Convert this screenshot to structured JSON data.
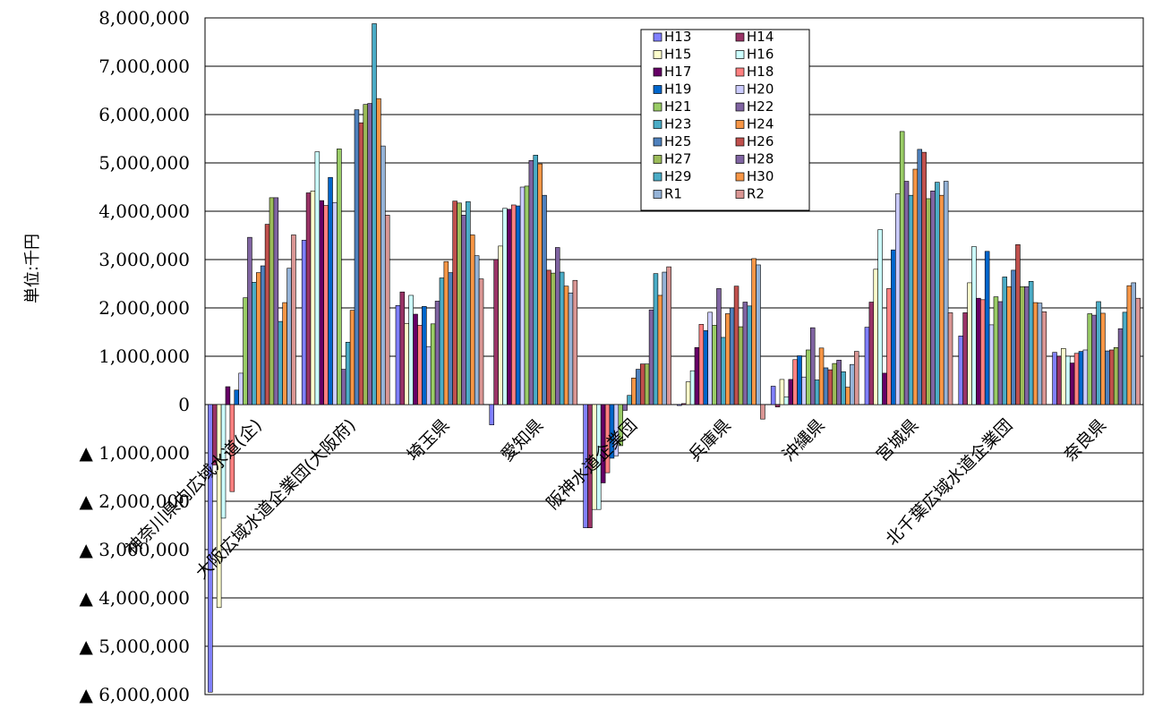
{
  "chart_data": {
    "type": "bar",
    "ylabel": "単位:千円",
    "ylim": [
      -6000000,
      8000000
    ],
    "grid": true,
    "legend_position": "top-right",
    "y_ticks": [
      {
        "value": 8000000,
        "label": "8,000,000"
      },
      {
        "value": 7000000,
        "label": "7,000,000"
      },
      {
        "value": 6000000,
        "label": "6,000,000"
      },
      {
        "value": 5000000,
        "label": "5,000,000"
      },
      {
        "value": 4000000,
        "label": "4,000,000"
      },
      {
        "value": 3000000,
        "label": "3,000,000"
      },
      {
        "value": 2000000,
        "label": "2,000,000"
      },
      {
        "value": 1000000,
        "label": "1,000,000"
      },
      {
        "value": 0,
        "label": "0"
      },
      {
        "value": -1000000,
        "label": "▲ 1,000,000"
      },
      {
        "value": -2000000,
        "label": "▲ 2,000,000"
      },
      {
        "value": -3000000,
        "label": "▲ 3,000,000"
      },
      {
        "value": -4000000,
        "label": "▲ 4,000,000"
      },
      {
        "value": -5000000,
        "label": "▲ 5,000,000"
      },
      {
        "value": -6000000,
        "label": "▲ 6,000,000"
      }
    ],
    "categories": [
      "神奈川県内広域水道(企)",
      "大阪広域水道企業団(大阪府)",
      "埼玉県",
      "愛知県",
      "阪神水道企業団",
      "兵庫県",
      "沖縄県",
      "宮城県",
      "北千葉広域水道企業団",
      "奈良県"
    ],
    "series": [
      {
        "name": "H13",
        "color": "#8080ff",
        "values": [
          -5950000,
          3400000,
          2050000,
          -420000,
          -2550000,
          -20000,
          380000,
          1600000,
          1420000,
          1080000
        ]
      },
      {
        "name": "H14",
        "color": "#993366",
        "values": [
          -1250000,
          4380000,
          2330000,
          3000000,
          -2550000,
          20000,
          -50000,
          2120000,
          1900000,
          1000000
        ]
      },
      {
        "name": "H15",
        "color": "#ffffcc",
        "values": [
          -4200000,
          4420000,
          1680000,
          3280000,
          -2170000,
          470000,
          520000,
          2800000,
          2520000,
          1160000
        ]
      },
      {
        "name": "H16",
        "color": "#ccffff",
        "values": [
          -2350000,
          5230000,
          2260000,
          4060000,
          -2170000,
          700000,
          160000,
          3620000,
          3270000,
          1000000
        ]
      },
      {
        "name": "H17",
        "color": "#660066",
        "values": [
          370000,
          4220000,
          1870000,
          4040000,
          -1620000,
          1180000,
          520000,
          650000,
          2200000,
          860000
        ]
      },
      {
        "name": "H18",
        "color": "#ff8080",
        "values": [
          -1800000,
          4120000,
          1640000,
          4130000,
          -1410000,
          1660000,
          930000,
          2400000,
          2170000,
          1060000
        ]
      },
      {
        "name": "H19",
        "color": "#0066cc",
        "values": [
          300000,
          4700000,
          2030000,
          4110000,
          -1110000,
          1530000,
          1010000,
          3200000,
          3170000,
          1100000
        ]
      },
      {
        "name": "H20",
        "color": "#ccccff",
        "values": [
          650000,
          4180000,
          1200000,
          4500000,
          -1060000,
          1910000,
          570000,
          4360000,
          1650000,
          1130000
        ]
      },
      {
        "name": "H21",
        "color": "#99cc66",
        "values": [
          2210000,
          5290000,
          1670000,
          4520000,
          -850000,
          1640000,
          1130000,
          5650000,
          2230000,
          1880000
        ]
      },
      {
        "name": "H22",
        "color": "#8064a2",
        "values": [
          3460000,
          730000,
          2140000,
          5050000,
          -120000,
          2400000,
          1590000,
          4620000,
          2130000,
          1850000
        ]
      },
      {
        "name": "H23",
        "color": "#4bacc6",
        "values": [
          2530000,
          1290000,
          2620000,
          5160000,
          190000,
          1390000,
          510000,
          4330000,
          2640000,
          2130000
        ]
      },
      {
        "name": "H24",
        "color": "#f79646",
        "values": [
          2730000,
          1950000,
          2960000,
          4980000,
          550000,
          1880000,
          1170000,
          4870000,
          2440000,
          1890000
        ]
      },
      {
        "name": "H25",
        "color": "#4f81bd",
        "values": [
          2870000,
          6100000,
          2730000,
          4330000,
          730000,
          2000000,
          760000,
          5280000,
          2780000,
          1110000
        ]
      },
      {
        "name": "H26",
        "color": "#c0504d",
        "values": [
          3730000,
          5830000,
          4210000,
          2780000,
          840000,
          2450000,
          720000,
          5220000,
          3310000,
          1130000
        ]
      },
      {
        "name": "H27",
        "color": "#9bbb59",
        "values": [
          4280000,
          6210000,
          4170000,
          2720000,
          840000,
          1610000,
          850000,
          4260000,
          2440000,
          1180000
        ]
      },
      {
        "name": "H28",
        "color": "#8064a2",
        "values": [
          4280000,
          6230000,
          3920000,
          3250000,
          1960000,
          2120000,
          920000,
          4420000,
          2440000,
          1570000
        ]
      },
      {
        "name": "H29",
        "color": "#4bacc6",
        "values": [
          1720000,
          7880000,
          4200000,
          2740000,
          2710000,
          2040000,
          680000,
          4600000,
          2550000,
          1910000
        ]
      },
      {
        "name": "H30",
        "color": "#f79646",
        "values": [
          2110000,
          6330000,
          3510000,
          2450000,
          2260000,
          3020000,
          360000,
          4330000,
          2110000,
          2460000
        ]
      },
      {
        "name": "R1",
        "color": "#95b3d7",
        "values": [
          2820000,
          5350000,
          3080000,
          2310000,
          2740000,
          2890000,
          830000,
          4620000,
          2100000,
          2520000
        ]
      },
      {
        "name": "R2",
        "color": "#da9694",
        "values": [
          3510000,
          3920000,
          2600000,
          2570000,
          2850000,
          -300000,
          1100000,
          1900000,
          1920000,
          2200000
        ]
      }
    ]
  }
}
